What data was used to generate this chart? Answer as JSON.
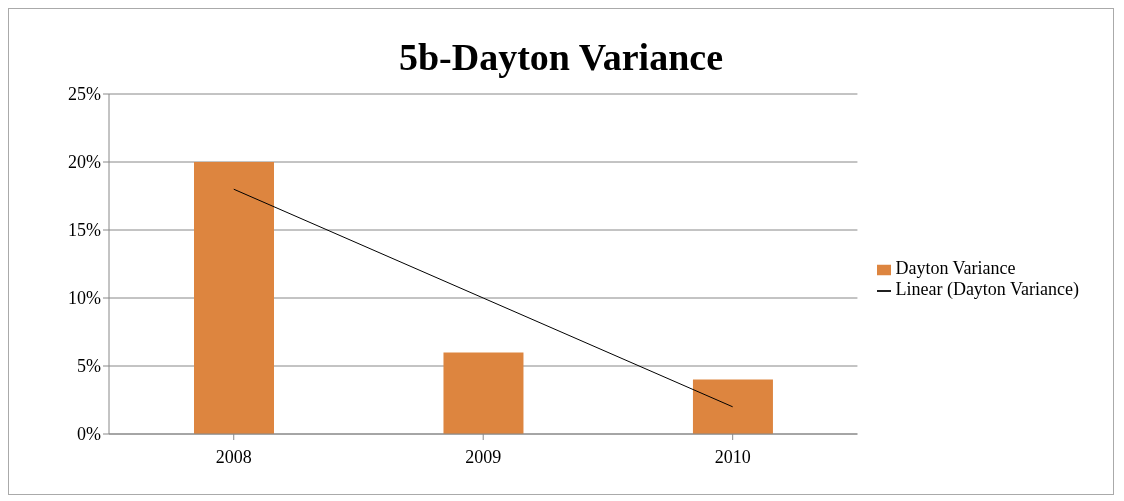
{
  "chart_data": {
    "type": "bar",
    "title": "5b-Dayton Variance",
    "categories": [
      "2008",
      "2009",
      "2010"
    ],
    "series": [
      {
        "name": "Dayton Variance",
        "color": "#dd853f",
        "values": [
          20,
          6,
          4
        ]
      },
      {
        "name": "Linear (Dayton Variance)",
        "type": "line",
        "color": "#000000",
        "values": [
          18,
          10,
          2
        ]
      }
    ],
    "ylim": [
      0,
      25
    ],
    "yticks": [
      {
        "value": 0,
        "label": "0%"
      },
      {
        "value": 5,
        "label": "5%"
      },
      {
        "value": 10,
        "label": "10%"
      },
      {
        "value": 15,
        "label": "15%"
      },
      {
        "value": 20,
        "label": "20%"
      },
      {
        "value": 25,
        "label": "25%"
      }
    ],
    "grid": "y",
    "legend": "right",
    "marker": "none",
    "line_style": "solid"
  }
}
